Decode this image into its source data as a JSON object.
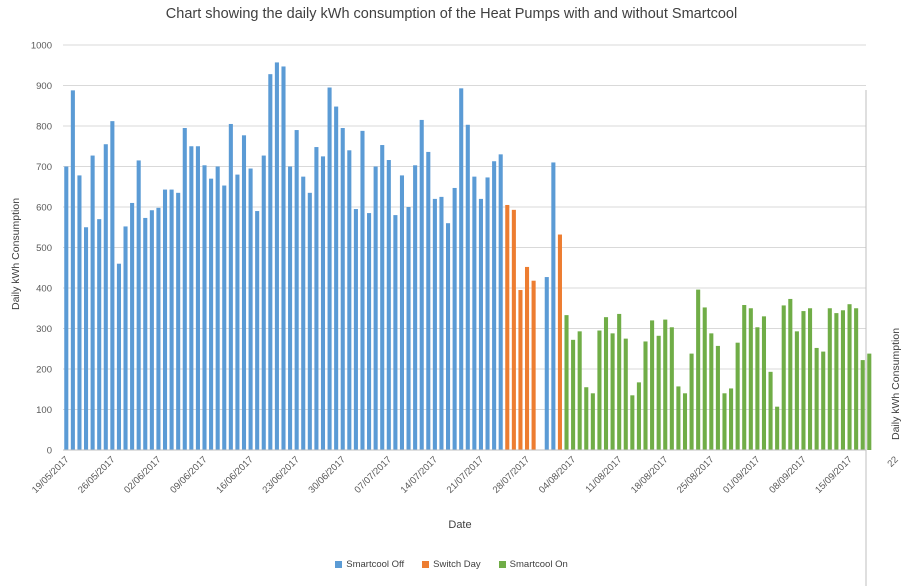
{
  "chart_data": {
    "type": "bar",
    "title": "Chart showing the daily kWh consumption of the Heat Pumps with and without Smartcool",
    "xlabel": "Date",
    "ylabel": "Daily kWh Consumption",
    "ylabel_right": "Daily kWh Consumption",
    "ylim": [
      0,
      1000
    ],
    "yticks": [
      "0",
      "100",
      "200",
      "300",
      "400",
      "500",
      "600",
      "700",
      "800",
      "900",
      "1000"
    ],
    "grid": true,
    "legend_position": "bottom",
    "xtick_labels": [
      "19/05/2017",
      "26/05/2017",
      "02/06/2017",
      "09/06/2017",
      "16/06/2017",
      "23/06/2017",
      "30/06/2017",
      "07/07/2017",
      "14/07/2017",
      "21/07/2017",
      "28/07/2017",
      "04/08/2017",
      "11/08/2017",
      "18/08/2017",
      "25/08/2017",
      "01/09/2017",
      "08/09/2017",
      "15/09/2017",
      "22"
    ],
    "series": [
      {
        "name": "Smartcool Off",
        "color": "#5b9bd5",
        "values": [
          700,
          888,
          678,
          550,
          727,
          570,
          755,
          812,
          460,
          552,
          610,
          715,
          573,
          592,
          598,
          643,
          643,
          635,
          795,
          750,
          750,
          703,
          670,
          700,
          653,
          805,
          680,
          777,
          695,
          590,
          727,
          928,
          957,
          947,
          700,
          790,
          675,
          635,
          748,
          725,
          895,
          848,
          795,
          740,
          595,
          788,
          585,
          700,
          753,
          716,
          580,
          678,
          600,
          703,
          815,
          736,
          620,
          625,
          560,
          647,
          893,
          803,
          675,
          620,
          673,
          713,
          730,
          null,
          null,
          null,
          null,
          null,
          null,
          427,
          710,
          null,
          null,
          null,
          null,
          null,
          null,
          null,
          null,
          null,
          null,
          null,
          null,
          null,
          null,
          null,
          null,
          null,
          null,
          null,
          null,
          null,
          null,
          null,
          null,
          null,
          null,
          null,
          null,
          null,
          null,
          null,
          null,
          null,
          null,
          null,
          null,
          null,
          null,
          null,
          null,
          null,
          null,
          null,
          null,
          null,
          null,
          null
        ]
      },
      {
        "name": "Switch Day",
        "color": "#ed7d31",
        "values": [
          null,
          null,
          null,
          null,
          null,
          null,
          null,
          null,
          null,
          null,
          null,
          null,
          null,
          null,
          null,
          null,
          null,
          null,
          null,
          null,
          null,
          null,
          null,
          null,
          null,
          null,
          null,
          null,
          null,
          null,
          null,
          null,
          null,
          null,
          null,
          null,
          null,
          null,
          null,
          null,
          null,
          null,
          null,
          null,
          null,
          null,
          null,
          null,
          null,
          null,
          null,
          null,
          null,
          null,
          null,
          null,
          null,
          null,
          null,
          null,
          null,
          null,
          null,
          null,
          null,
          null,
          null,
          605,
          593,
          395,
          452,
          418,
          null,
          null,
          null,
          532,
          null,
          null,
          null,
          null,
          null,
          null,
          null,
          null,
          null,
          null,
          null,
          null,
          null,
          null,
          null,
          null,
          null,
          null,
          null,
          null,
          null,
          null,
          null,
          null,
          null,
          null,
          null,
          null,
          null,
          null,
          null,
          null,
          null,
          null,
          null,
          null,
          null,
          null,
          null,
          null,
          null,
          null,
          null,
          null,
          null,
          null
        ]
      },
      {
        "name": "Smartcool On",
        "color": "#70ad47",
        "values": [
          null,
          null,
          null,
          null,
          null,
          null,
          null,
          null,
          null,
          null,
          null,
          null,
          null,
          null,
          null,
          null,
          null,
          null,
          null,
          null,
          null,
          null,
          null,
          null,
          null,
          null,
          null,
          null,
          null,
          null,
          null,
          null,
          null,
          null,
          null,
          null,
          null,
          null,
          null,
          null,
          null,
          null,
          null,
          null,
          null,
          null,
          null,
          null,
          null,
          null,
          null,
          null,
          null,
          null,
          null,
          null,
          null,
          null,
          null,
          null,
          null,
          null,
          null,
          null,
          null,
          null,
          null,
          null,
          null,
          null,
          null,
          null,
          null,
          null,
          null,
          null,
          333,
          272,
          293,
          155,
          140,
          295,
          328,
          288,
          336,
          275,
          135,
          167,
          268,
          320,
          282,
          322,
          303,
          157,
          140,
          238,
          396,
          352,
          288,
          257,
          140,
          152,
          265,
          358,
          350,
          303,
          330,
          193,
          107,
          357,
          373,
          293,
          343,
          350,
          252,
          243,
          350,
          338,
          345,
          360,
          350,
          222,
          238
        ]
      }
    ]
  }
}
